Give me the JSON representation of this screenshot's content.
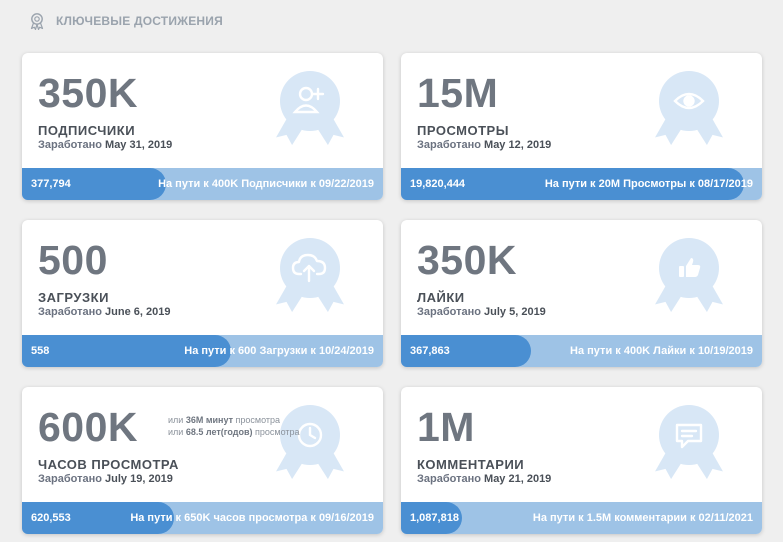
{
  "section": {
    "title": "КЛЮЧЕВЫЕ ДОСТИЖЕНИЯ",
    "icon": "medal-icon"
  },
  "colors": {
    "accent": "#4a8fd2",
    "track": "#9ec3e6",
    "medal": "#d8e7f6",
    "medal_icon": "#ffffff"
  },
  "cards": [
    {
      "value": "350K",
      "label": "ПОДПИСЧИКИ",
      "earned_prefix": "Заработано",
      "earned_date": "May 31, 2019",
      "icon": "add-user-icon",
      "current": "377,794",
      "target": "На пути к 400K Подписчики к 09/22/2019",
      "progress": 0.4
    },
    {
      "value": "15M",
      "label": "ПРОСМОТРЫ",
      "earned_prefix": "Заработано",
      "earned_date": "May 12, 2019",
      "icon": "eye-icon",
      "current": "19,820,444",
      "target": "На пути к 20M Просмотры к 08/17/2019",
      "progress": 0.95
    },
    {
      "value": "500",
      "label": "ЗАГРУЗКИ",
      "earned_prefix": "Заработано",
      "earned_date": "June 6, 2019",
      "icon": "upload-cloud-icon",
      "current": "558",
      "target": "На пути к 600 Загрузки к 10/24/2019",
      "progress": 0.58
    },
    {
      "value": "350K",
      "label": "ЛАЙКИ",
      "earned_prefix": "Заработано",
      "earned_date": "July 5, 2019",
      "icon": "thumbs-up-icon",
      "current": "367,863",
      "target": "На пути к 400K Лайки к 10/19/2019",
      "progress": 0.36
    },
    {
      "value": "600K",
      "label": "ЧАСОВ ПРОСМОТРА",
      "earned_prefix": "Заработано",
      "earned_date": "July 19, 2019",
      "icon": "clock-icon",
      "extra": [
        {
          "prefix": "или",
          "value": "36M минут",
          "suffix": "просмотра"
        },
        {
          "prefix": "или",
          "value": "68.5 лет(годов)",
          "suffix": "просмотра"
        }
      ],
      "current": "620,553",
      "target": "На пути к 650K часов просмотра к 09/16/2019",
      "progress": 0.42
    },
    {
      "value": "1M",
      "label": "КОММЕНТАРИИ",
      "earned_prefix": "Заработано",
      "earned_date": "May 21, 2019",
      "icon": "comment-icon",
      "current": "1,087,818",
      "target": "На пути к 1.5M комментарии к 02/11/2021",
      "progress": 0.17
    }
  ]
}
